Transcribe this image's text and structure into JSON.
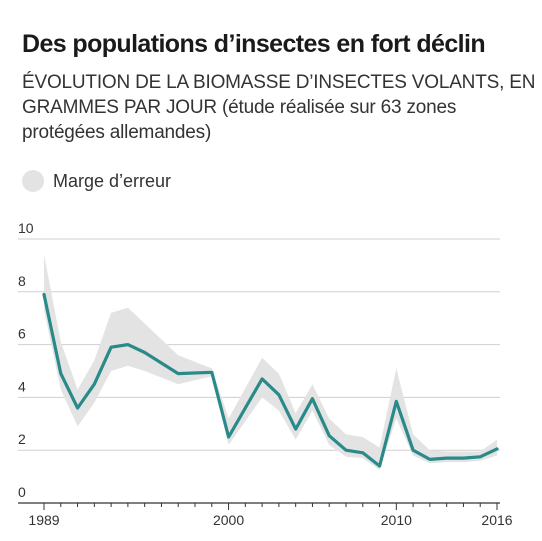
{
  "header": {
    "title": "Des populations d’insectes en fort déclin",
    "subtitle_caps": "ÉVOLUTION DE LA BIOMASSE D’INSECTES VOLANTS, EN GRAMMES PAR JOUR",
    "subtitle_rest": " (étude réalisée sur 63 zones protégées allemandes)"
  },
  "legend": {
    "band_label": "Marge d’erreur",
    "band_color": "#e3e3e3"
  },
  "colors": {
    "line": "#2a8a8a",
    "grid": "#cfcfcf",
    "band": "#e3e3e3"
  },
  "chart_data": {
    "type": "line",
    "title": "Des populations d’insectes en fort déclin",
    "xlim": [
      1989,
      2016
    ],
    "ylim": [
      0,
      10
    ],
    "yticks": [
      0,
      2,
      4,
      6,
      8,
      10
    ],
    "xticks": [
      1989,
      2000,
      2010,
      2016
    ],
    "grid": true,
    "legend": "top-left",
    "series": [
      {
        "name": "",
        "x": [
          1989,
          1990,
          1991,
          1992,
          1993,
          1994,
          1995,
          1997,
          1999,
          2000,
          2002,
          2003,
          2004,
          2005,
          2006,
          2007,
          2008,
          2009,
          2010,
          2011,
          2012,
          2013,
          2014,
          2015,
          2016
        ],
        "y": [
          7.9,
          4.9,
          3.6,
          4.5,
          5.9,
          6.0,
          5.7,
          4.9,
          4.95,
          2.5,
          4.7,
          4.1,
          2.8,
          3.95,
          2.55,
          2.0,
          1.9,
          1.4,
          3.85,
          2.0,
          1.65,
          1.7,
          1.7,
          1.75,
          2.05
        ]
      }
    ],
    "error_band": {
      "name": "Marge d’erreur",
      "x": [
        1989,
        1990,
        1991,
        1992,
        1993,
        1994,
        1995,
        1997,
        1999,
        2000,
        2002,
        2003,
        2004,
        2005,
        2006,
        2007,
        2008,
        2009,
        2010,
        2011,
        2012,
        2013,
        2014,
        2015,
        2016
      ],
      "upper": [
        9.4,
        6.1,
        4.3,
        5.4,
        7.2,
        7.4,
        6.8,
        5.6,
        5.1,
        3.2,
        5.5,
        4.9,
        3.4,
        4.5,
        3.2,
        2.6,
        2.5,
        2.1,
        5.1,
        2.6,
        2.0,
        1.95,
        1.95,
        1.95,
        2.4
      ],
      "lower": [
        7.3,
        4.3,
        2.9,
        3.8,
        5.0,
        5.2,
        5.0,
        4.5,
        4.8,
        2.2,
        4.0,
        3.5,
        2.4,
        3.5,
        2.2,
        1.75,
        1.7,
        1.25,
        3.2,
        1.8,
        1.5,
        1.55,
        1.55,
        1.6,
        1.8
      ]
    }
  }
}
